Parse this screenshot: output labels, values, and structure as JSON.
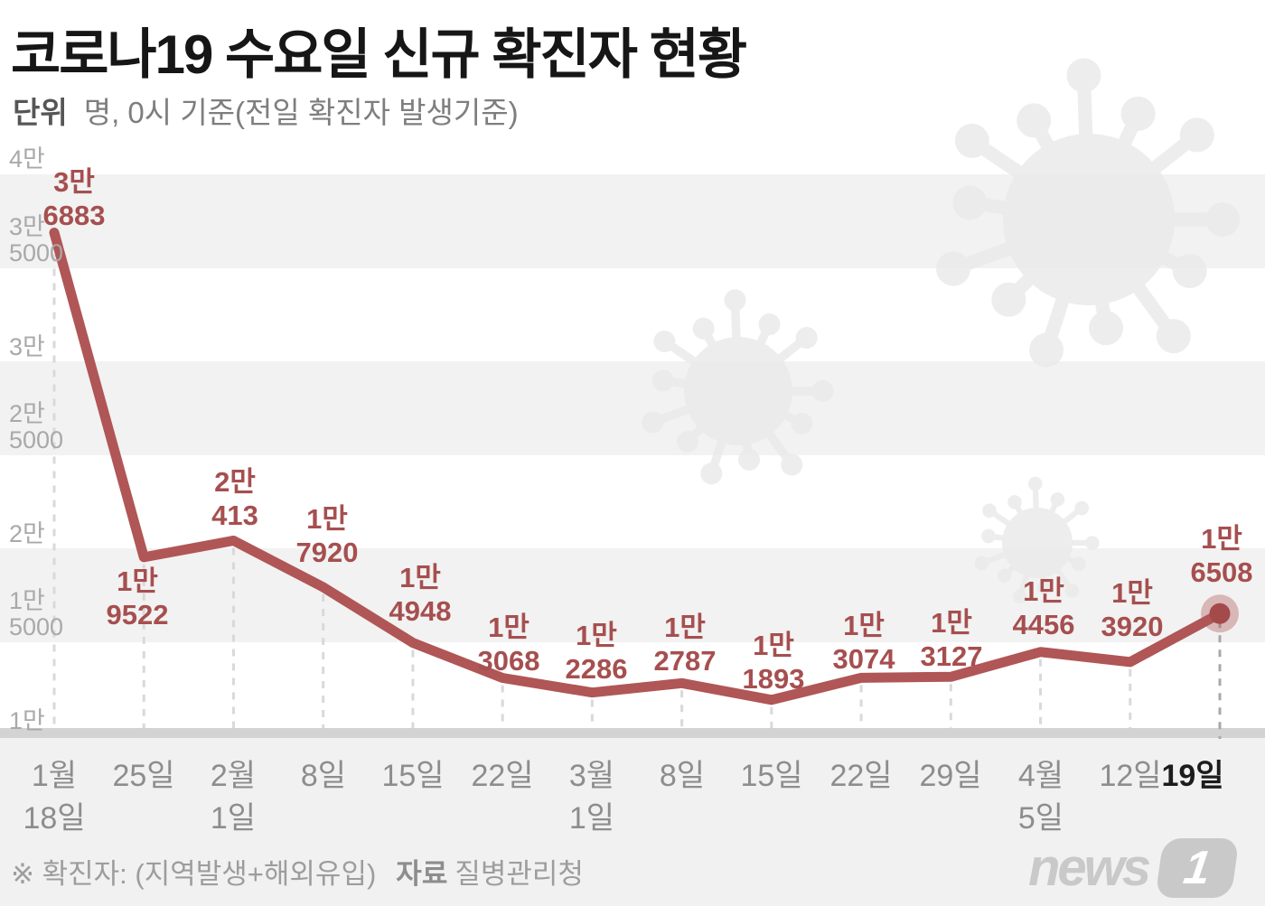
{
  "title": "코로나19 수요일 신규 확진자 현황",
  "subtitle": {
    "label": "단위",
    "text": "명, 0시 기준(전일 확진자 발생기준)"
  },
  "y_axis": {
    "ticks": [
      {
        "l1": "4만"
      },
      {
        "l1": "3만",
        "l2": "5000"
      },
      {
        "l1": "3만"
      },
      {
        "l1": "2만",
        "l2": "5000"
      },
      {
        "l1": "2만"
      },
      {
        "l1": "1만",
        "l2": "5000"
      },
      {
        "l1": "1만"
      }
    ]
  },
  "points": [
    {
      "date1": "1월",
      "date2": "18일",
      "val1": "3만",
      "val2": "6883",
      "value": 36883
    },
    {
      "date1": "25일",
      "val1": "1만",
      "val2": "9522",
      "value": 19522
    },
    {
      "date1": "2월",
      "date2": "1일",
      "val1": "2만",
      "val2": "413",
      "value": 20413
    },
    {
      "date1": "8일",
      "val1": "1만",
      "val2": "7920",
      "value": 17920
    },
    {
      "date1": "15일",
      "val1": "1만",
      "val2": "4948",
      "value": 14948
    },
    {
      "date1": "22일",
      "val1": "1만",
      "val2": "3068",
      "value": 13068
    },
    {
      "date1": "3월",
      "date2": "1일",
      "val1": "1만",
      "val2": "2286",
      "value": 12286
    },
    {
      "date1": "8일",
      "val1": "1만",
      "val2": "2787",
      "value": 12787
    },
    {
      "date1": "15일",
      "val1": "1만",
      "val2": "1893",
      "value": 11893
    },
    {
      "date1": "22일",
      "val1": "1만",
      "val2": "3074",
      "value": 13074
    },
    {
      "date1": "29일",
      "val1": "1만",
      "val2": "3127",
      "value": 13127
    },
    {
      "date1": "4월",
      "date2": "5일",
      "val1": "1만",
      "val2": "4456",
      "value": 14456
    },
    {
      "date1": "12일",
      "val1": "1만",
      "val2": "3920",
      "value": 13920
    },
    {
      "date1": "19일",
      "val1": "1만",
      "val2": "6508",
      "value": 16508
    }
  ],
  "footnote": {
    "note": "※ 확진자: (지역발생+해외유입)",
    "source_label": "자료",
    "source": "질병관리청"
  },
  "logo": {
    "text": "news",
    "badge": "1"
  },
  "colors": {
    "line": "#b05656",
    "label_red": "#a64f4f",
    "marker": "#a34a4a",
    "grid_dash": "#d9d9d9",
    "grid_dash_dark": "#a8a8a8",
    "stripe": "#f2f2f2"
  },
  "chart_data": {
    "type": "line",
    "title": "코로나19 수요일 신규 확진자 현황",
    "unit": "명, 0시 기준(전일 확진자 발생기준)",
    "categories": [
      "1월 18일",
      "25일",
      "2월 1일",
      "8일",
      "15일",
      "22일",
      "3월 1일",
      "8일",
      "15일",
      "22일",
      "29일",
      "4월 5일",
      "12일",
      "19일"
    ],
    "values": [
      36883,
      19522,
      20413,
      17920,
      14948,
      13068,
      12286,
      12787,
      11893,
      13074,
      13127,
      14456,
      13920,
      16508
    ],
    "y_tick_values": [
      40000,
      35000,
      30000,
      25000,
      20000,
      15000,
      10000
    ],
    "y_tick_labels": [
      "4만",
      "3만5000",
      "3만",
      "2만5000",
      "2만",
      "1만5000",
      "1만"
    ],
    "ylim": [
      10000,
      40000
    ],
    "grid": "horizontal-stripes",
    "legend": "none",
    "line_color": "#b05656",
    "source": "질병관리청"
  }
}
